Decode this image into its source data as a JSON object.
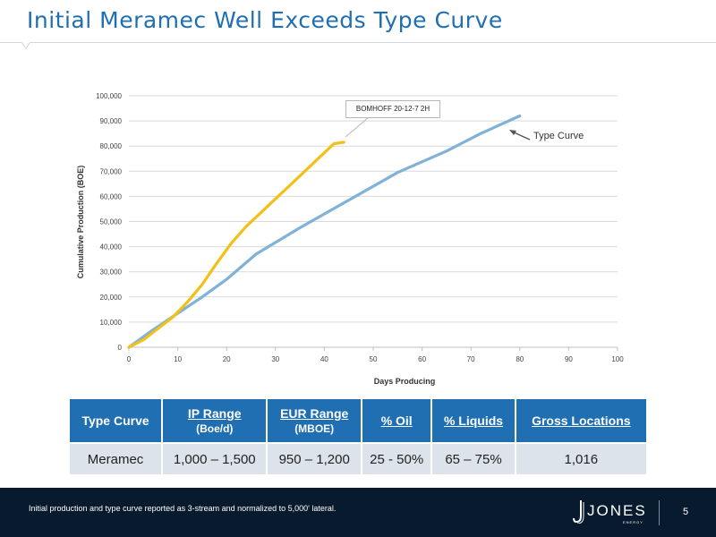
{
  "slide": {
    "title": "Initial Meramec Well Exceeds Type Curve",
    "footnote": "Initial production and type curve reported as 3-stream and normalized to 5,000' lateral.",
    "page_number": "5",
    "logo_text": "JONES",
    "logo_subtext": "ENERGY"
  },
  "colors": {
    "title": "#1f6fb2",
    "type_curve": "#7fb2d6",
    "well": "#f2c019",
    "table_header": "#1f6fb2",
    "table_body": "#dde3ea",
    "footer": "#081b2e"
  },
  "chart_data": {
    "type": "line",
    "xlabel": "Days Producing",
    "ylabel": "Cumulative Production (BOE)",
    "xlim": [
      0,
      100
    ],
    "ylim": [
      0,
      100000
    ],
    "x_ticks": [
      0,
      10,
      20,
      30,
      40,
      50,
      60,
      70,
      80,
      90,
      100
    ],
    "y_ticks": [
      0,
      10000,
      20000,
      30000,
      40000,
      50000,
      60000,
      70000,
      80000,
      90000,
      100000
    ],
    "y_tick_labels": [
      "0",
      "10,000",
      "20,000",
      "30,000",
      "40,000",
      "50,000",
      "60,000",
      "70,000",
      "80,000",
      "90,000",
      "100,000"
    ],
    "grid": "horizontal",
    "series": [
      {
        "name": "Type Curve",
        "color": "#7fb2d6",
        "x": [
          0,
          5,
          10,
          15,
          20,
          26,
          35,
          45,
          55,
          65,
          72,
          80
        ],
        "y": [
          0,
          7000,
          13500,
          20000,
          27000,
          37000,
          47500,
          58500,
          69500,
          78000,
          85000,
          92000
        ]
      },
      {
        "name": "BOMHOFF 20-12-7 2H",
        "color": "#f2c019",
        "x": [
          0,
          3,
          6,
          9,
          12,
          15,
          18,
          21,
          24,
          27,
          30,
          33,
          36,
          39,
          42,
          44
        ],
        "y": [
          0,
          3000,
          7500,
          12000,
          18000,
          25000,
          33500,
          41500,
          48000,
          53500,
          59000,
          64500,
          70000,
          75500,
          81000,
          81500
        ]
      }
    ],
    "annotations": {
      "well_callout": "BOMHOFF 20-12-7 2H",
      "type_curve_label": "Type Curve"
    }
  },
  "table": {
    "headers": [
      {
        "main": "Type Curve",
        "sub": ""
      },
      {
        "main": "IP Range",
        "sub": "(Boe/d)"
      },
      {
        "main": "EUR Range",
        "sub": "(MBOE)"
      },
      {
        "main": "% Oil",
        "sub": ""
      },
      {
        "main": "% Liquids",
        "sub": ""
      },
      {
        "main": "Gross Locations",
        "sub": ""
      }
    ],
    "rows": [
      [
        "Meramec",
        "1,000 – 1,500",
        "950 – 1,200",
        "25 - 50%",
        "65 – 75%",
        "1,016"
      ]
    ]
  }
}
